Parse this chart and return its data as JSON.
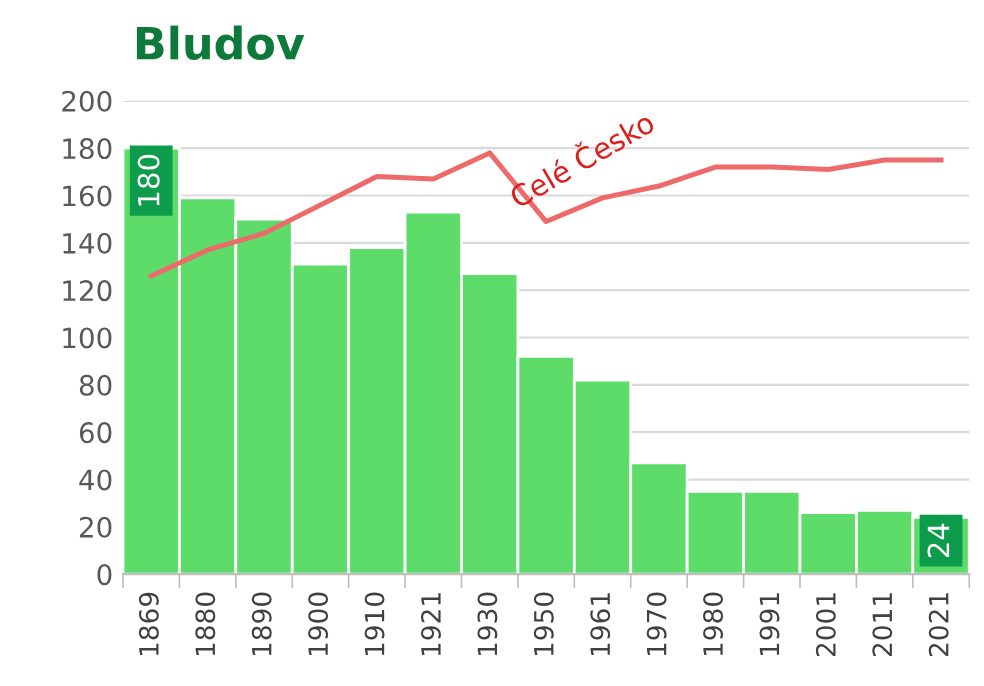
{
  "chart_data": {
    "type": "bar",
    "title": "Bludov",
    "categories": [
      "1869",
      "1880",
      "1890",
      "1900",
      "1910",
      "1921",
      "1930",
      "1950",
      "1961",
      "1970",
      "1980",
      "1991",
      "2001",
      "2011",
      "2021"
    ],
    "series": [
      {
        "color": "#5ddc6a",
        "values": [
          180,
          159,
          150,
          131,
          138,
          153,
          127,
          92,
          82,
          47,
          35,
          35,
          26,
          27,
          24
        ],
        "value_labels": [
          "180",
          null,
          null,
          null,
          null,
          null,
          null,
          null,
          null,
          null,
          null,
          null,
          null,
          null,
          "24"
        ]
      },
      {
        "type": "line",
        "name": "Celé Česko",
        "color": "#ee6a6a",
        "values": [
          126,
          137,
          144,
          156,
          168,
          167,
          178,
          149,
          159,
          164,
          172,
          172,
          171,
          175,
          175
        ]
      }
    ],
    "ylim": [
      0,
      200
    ],
    "yticks": [
      0,
      20,
      40,
      60,
      80,
      100,
      120,
      140,
      160,
      180,
      200
    ],
    "grid": "y",
    "legend": false
  }
}
